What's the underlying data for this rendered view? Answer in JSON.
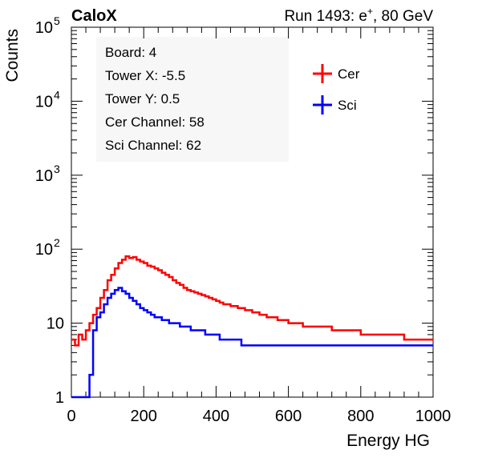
{
  "header": {
    "experiment": "CaloX",
    "run_prefix": "Run 1493: e",
    "run_sup": "+",
    "run_suffix": ", 80 GeV"
  },
  "info_box": {
    "lines": [
      "Board: 4",
      "Tower X: -5.5",
      "Tower Y: 0.5",
      "Cer Channel: 58",
      "Sci Channel: 62"
    ]
  },
  "chart_data": {
    "type": "line",
    "xlabel": "Energy HG",
    "ylabel": "Counts",
    "xlim": [
      0,
      1000
    ],
    "ylim": [
      1,
      100000
    ],
    "y_scale": "log",
    "x_ticks": [
      "0",
      "200",
      "400",
      "600",
      "800",
      "1000"
    ],
    "y_ticks": [
      {
        "value": 1,
        "label": "1"
      },
      {
        "value": 10,
        "label": "10"
      },
      {
        "value": 100,
        "label": "10",
        "sup": "2"
      },
      {
        "value": 1000,
        "label": "10",
        "sup": "3"
      },
      {
        "value": 10000,
        "label": "10",
        "sup": "4"
      },
      {
        "value": 100000,
        "label": "10",
        "sup": "5"
      }
    ],
    "grid": false,
    "legend": "top-right",
    "series": [
      {
        "name": "Cer",
        "color": "#ff0000",
        "points": [
          [
            0,
            6
          ],
          [
            10,
            5
          ],
          [
            20,
            7
          ],
          [
            30,
            6
          ],
          [
            40,
            8
          ],
          [
            50,
            10
          ],
          [
            60,
            13
          ],
          [
            70,
            16
          ],
          [
            80,
            22
          ],
          [
            90,
            28
          ],
          [
            100,
            38
          ],
          [
            110,
            45
          ],
          [
            120,
            55
          ],
          [
            130,
            65
          ],
          [
            140,
            72
          ],
          [
            150,
            80
          ],
          [
            160,
            76
          ],
          [
            170,
            78
          ],
          [
            180,
            72
          ],
          [
            190,
            68
          ],
          [
            200,
            65
          ],
          [
            210,
            60
          ],
          [
            220,
            58
          ],
          [
            230,
            55
          ],
          [
            240,
            52
          ],
          [
            250,
            48
          ],
          [
            260,
            45
          ],
          [
            270,
            42
          ],
          [
            280,
            38
          ],
          [
            290,
            35
          ],
          [
            300,
            33
          ],
          [
            310,
            30
          ],
          [
            320,
            28
          ],
          [
            330,
            27
          ],
          [
            340,
            26
          ],
          [
            350,
            25
          ],
          [
            360,
            24
          ],
          [
            370,
            23
          ],
          [
            380,
            22
          ],
          [
            390,
            21
          ],
          [
            400,
            20
          ],
          [
            410,
            19
          ],
          [
            420,
            18
          ],
          [
            430,
            18
          ],
          [
            440,
            17
          ],
          [
            450,
            17
          ],
          [
            460,
            16
          ],
          [
            470,
            16
          ],
          [
            480,
            15
          ],
          [
            490,
            15
          ],
          [
            500,
            14
          ],
          [
            510,
            14
          ],
          [
            520,
            13
          ],
          [
            530,
            13
          ],
          [
            540,
            12
          ],
          [
            550,
            12
          ],
          [
            560,
            12
          ],
          [
            570,
            11
          ],
          [
            580,
            11
          ],
          [
            590,
            11
          ],
          [
            600,
            10
          ],
          [
            610,
            10
          ],
          [
            620,
            10
          ],
          [
            630,
            10
          ],
          [
            640,
            9
          ],
          [
            650,
            9
          ],
          [
            660,
            9
          ],
          [
            670,
            9
          ],
          [
            680,
            9
          ],
          [
            690,
            9
          ],
          [
            700,
            9
          ],
          [
            710,
            9
          ],
          [
            720,
            8
          ],
          [
            730,
            8
          ],
          [
            740,
            8
          ],
          [
            750,
            8
          ],
          [
            760,
            8
          ],
          [
            770,
            8
          ],
          [
            780,
            8
          ],
          [
            790,
            8
          ],
          [
            800,
            7
          ],
          [
            810,
            7
          ],
          [
            820,
            7
          ],
          [
            830,
            7
          ],
          [
            840,
            7
          ],
          [
            850,
            7
          ],
          [
            860,
            7
          ],
          [
            870,
            7
          ],
          [
            880,
            7
          ],
          [
            890,
            7
          ],
          [
            900,
            7
          ],
          [
            910,
            7
          ],
          [
            920,
            6
          ],
          [
            930,
            6
          ],
          [
            940,
            6
          ],
          [
            950,
            6
          ],
          [
            960,
            6
          ],
          [
            970,
            6
          ],
          [
            980,
            6
          ],
          [
            990,
            6
          ],
          [
            1000,
            6
          ]
        ]
      },
      {
        "name": "Sci",
        "color": "#0000ff",
        "points": [
          [
            0,
            1
          ],
          [
            10,
            1
          ],
          [
            20,
            1
          ],
          [
            30,
            1
          ],
          [
            40,
            1
          ],
          [
            50,
            2
          ],
          [
            60,
            8
          ],
          [
            70,
            12
          ],
          [
            80,
            14
          ],
          [
            90,
            18
          ],
          [
            100,
            22
          ],
          [
            110,
            25
          ],
          [
            120,
            28
          ],
          [
            130,
            30
          ],
          [
            140,
            27
          ],
          [
            150,
            25
          ],
          [
            160,
            22
          ],
          [
            170,
            20
          ],
          [
            180,
            18
          ],
          [
            190,
            16
          ],
          [
            200,
            15
          ],
          [
            210,
            14
          ],
          [
            220,
            13
          ],
          [
            230,
            12
          ],
          [
            240,
            12
          ],
          [
            250,
            11
          ],
          [
            260,
            11
          ],
          [
            270,
            10
          ],
          [
            280,
            10
          ],
          [
            290,
            10
          ],
          [
            300,
            9
          ],
          [
            310,
            9
          ],
          [
            320,
            9
          ],
          [
            330,
            8
          ],
          [
            340,
            8
          ],
          [
            350,
            8
          ],
          [
            360,
            8
          ],
          [
            370,
            7
          ],
          [
            380,
            7
          ],
          [
            390,
            7
          ],
          [
            400,
            7
          ],
          [
            410,
            6
          ],
          [
            420,
            6
          ],
          [
            430,
            6
          ],
          [
            440,
            6
          ],
          [
            450,
            6
          ],
          [
            460,
            6
          ],
          [
            470,
            5
          ],
          [
            480,
            5
          ],
          [
            490,
            5
          ],
          [
            500,
            5
          ],
          [
            510,
            5
          ],
          [
            520,
            5
          ],
          [
            530,
            5
          ],
          [
            540,
            5
          ],
          [
            550,
            5
          ],
          [
            560,
            5
          ],
          [
            570,
            5
          ],
          [
            580,
            5
          ],
          [
            590,
            5
          ],
          [
            600,
            5
          ],
          [
            610,
            5
          ],
          [
            620,
            5
          ],
          [
            630,
            5
          ],
          [
            640,
            5
          ],
          [
            650,
            5
          ],
          [
            660,
            5
          ],
          [
            670,
            5
          ],
          [
            680,
            5
          ],
          [
            690,
            5
          ],
          [
            700,
            5
          ],
          [
            710,
            5
          ],
          [
            720,
            5
          ],
          [
            730,
            5
          ],
          [
            740,
            5
          ],
          [
            750,
            5
          ],
          [
            760,
            5
          ],
          [
            770,
            5
          ],
          [
            780,
            5
          ],
          [
            790,
            5
          ],
          [
            800,
            5
          ],
          [
            810,
            5
          ],
          [
            820,
            5
          ],
          [
            830,
            5
          ],
          [
            840,
            5
          ],
          [
            850,
            5
          ],
          [
            860,
            5
          ],
          [
            870,
            5
          ],
          [
            880,
            5
          ],
          [
            890,
            5
          ],
          [
            900,
            5
          ],
          [
            910,
            5
          ],
          [
            920,
            5
          ],
          [
            930,
            5
          ],
          [
            940,
            5
          ],
          [
            950,
            5
          ],
          [
            960,
            5
          ],
          [
            970,
            5
          ],
          [
            980,
            5
          ],
          [
            990,
            5
          ],
          [
            1000,
            5
          ]
        ]
      }
    ]
  }
}
